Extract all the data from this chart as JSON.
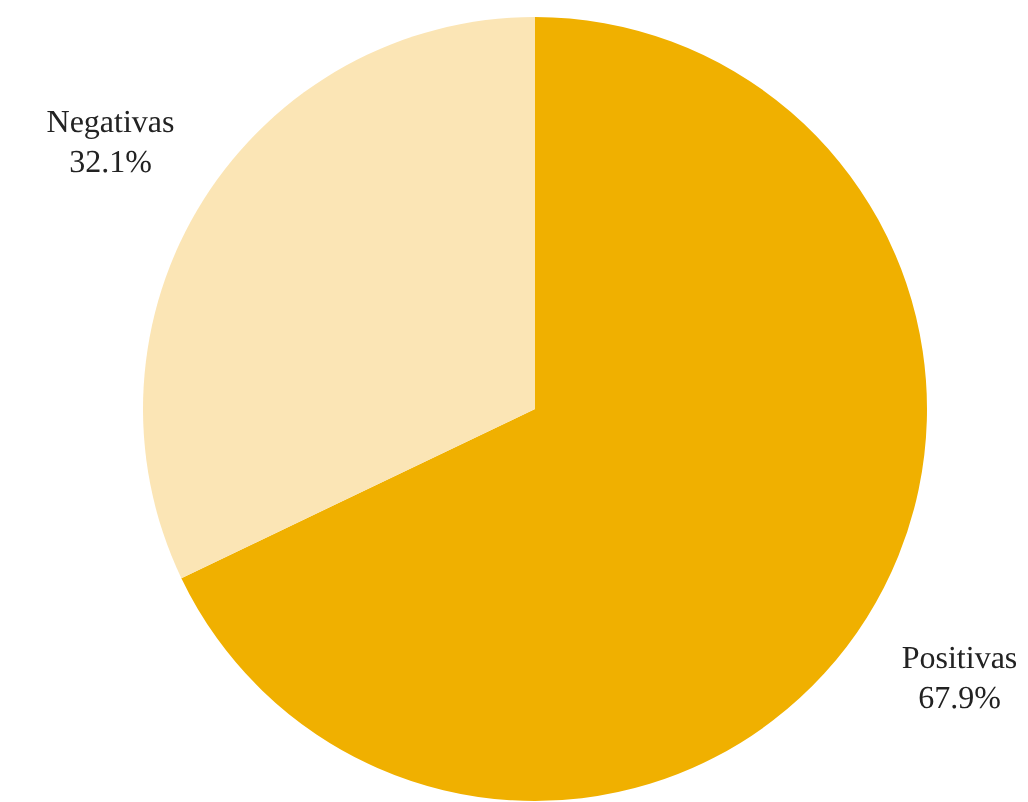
{
  "chart_data": {
    "type": "pie",
    "categories": [
      "Positivas",
      "Negativas"
    ],
    "values": [
      67.9,
      32.1
    ],
    "colors": [
      "#f0b000",
      "#fbe5b5"
    ],
    "value_labels": [
      "67.9%",
      "32.1%"
    ]
  }
}
